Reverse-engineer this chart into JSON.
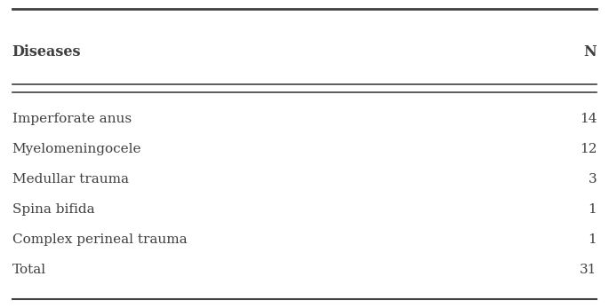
{
  "col_headers": [
    "Diseases",
    "N"
  ],
  "rows": [
    [
      "Imperforate anus",
      "14"
    ],
    [
      "Myelomeningocele",
      "12"
    ],
    [
      "Medullar trauma",
      "3"
    ],
    [
      "Spina bifida",
      "1"
    ],
    [
      "Complex perineal trauma",
      "1"
    ],
    [
      "Total",
      "31"
    ]
  ],
  "bg_color": "#ffffff",
  "text_color": "#404040",
  "header_fontsize": 11.5,
  "row_fontsize": 11,
  "fig_width": 6.85,
  "fig_height": 3.47,
  "dpi": 100
}
